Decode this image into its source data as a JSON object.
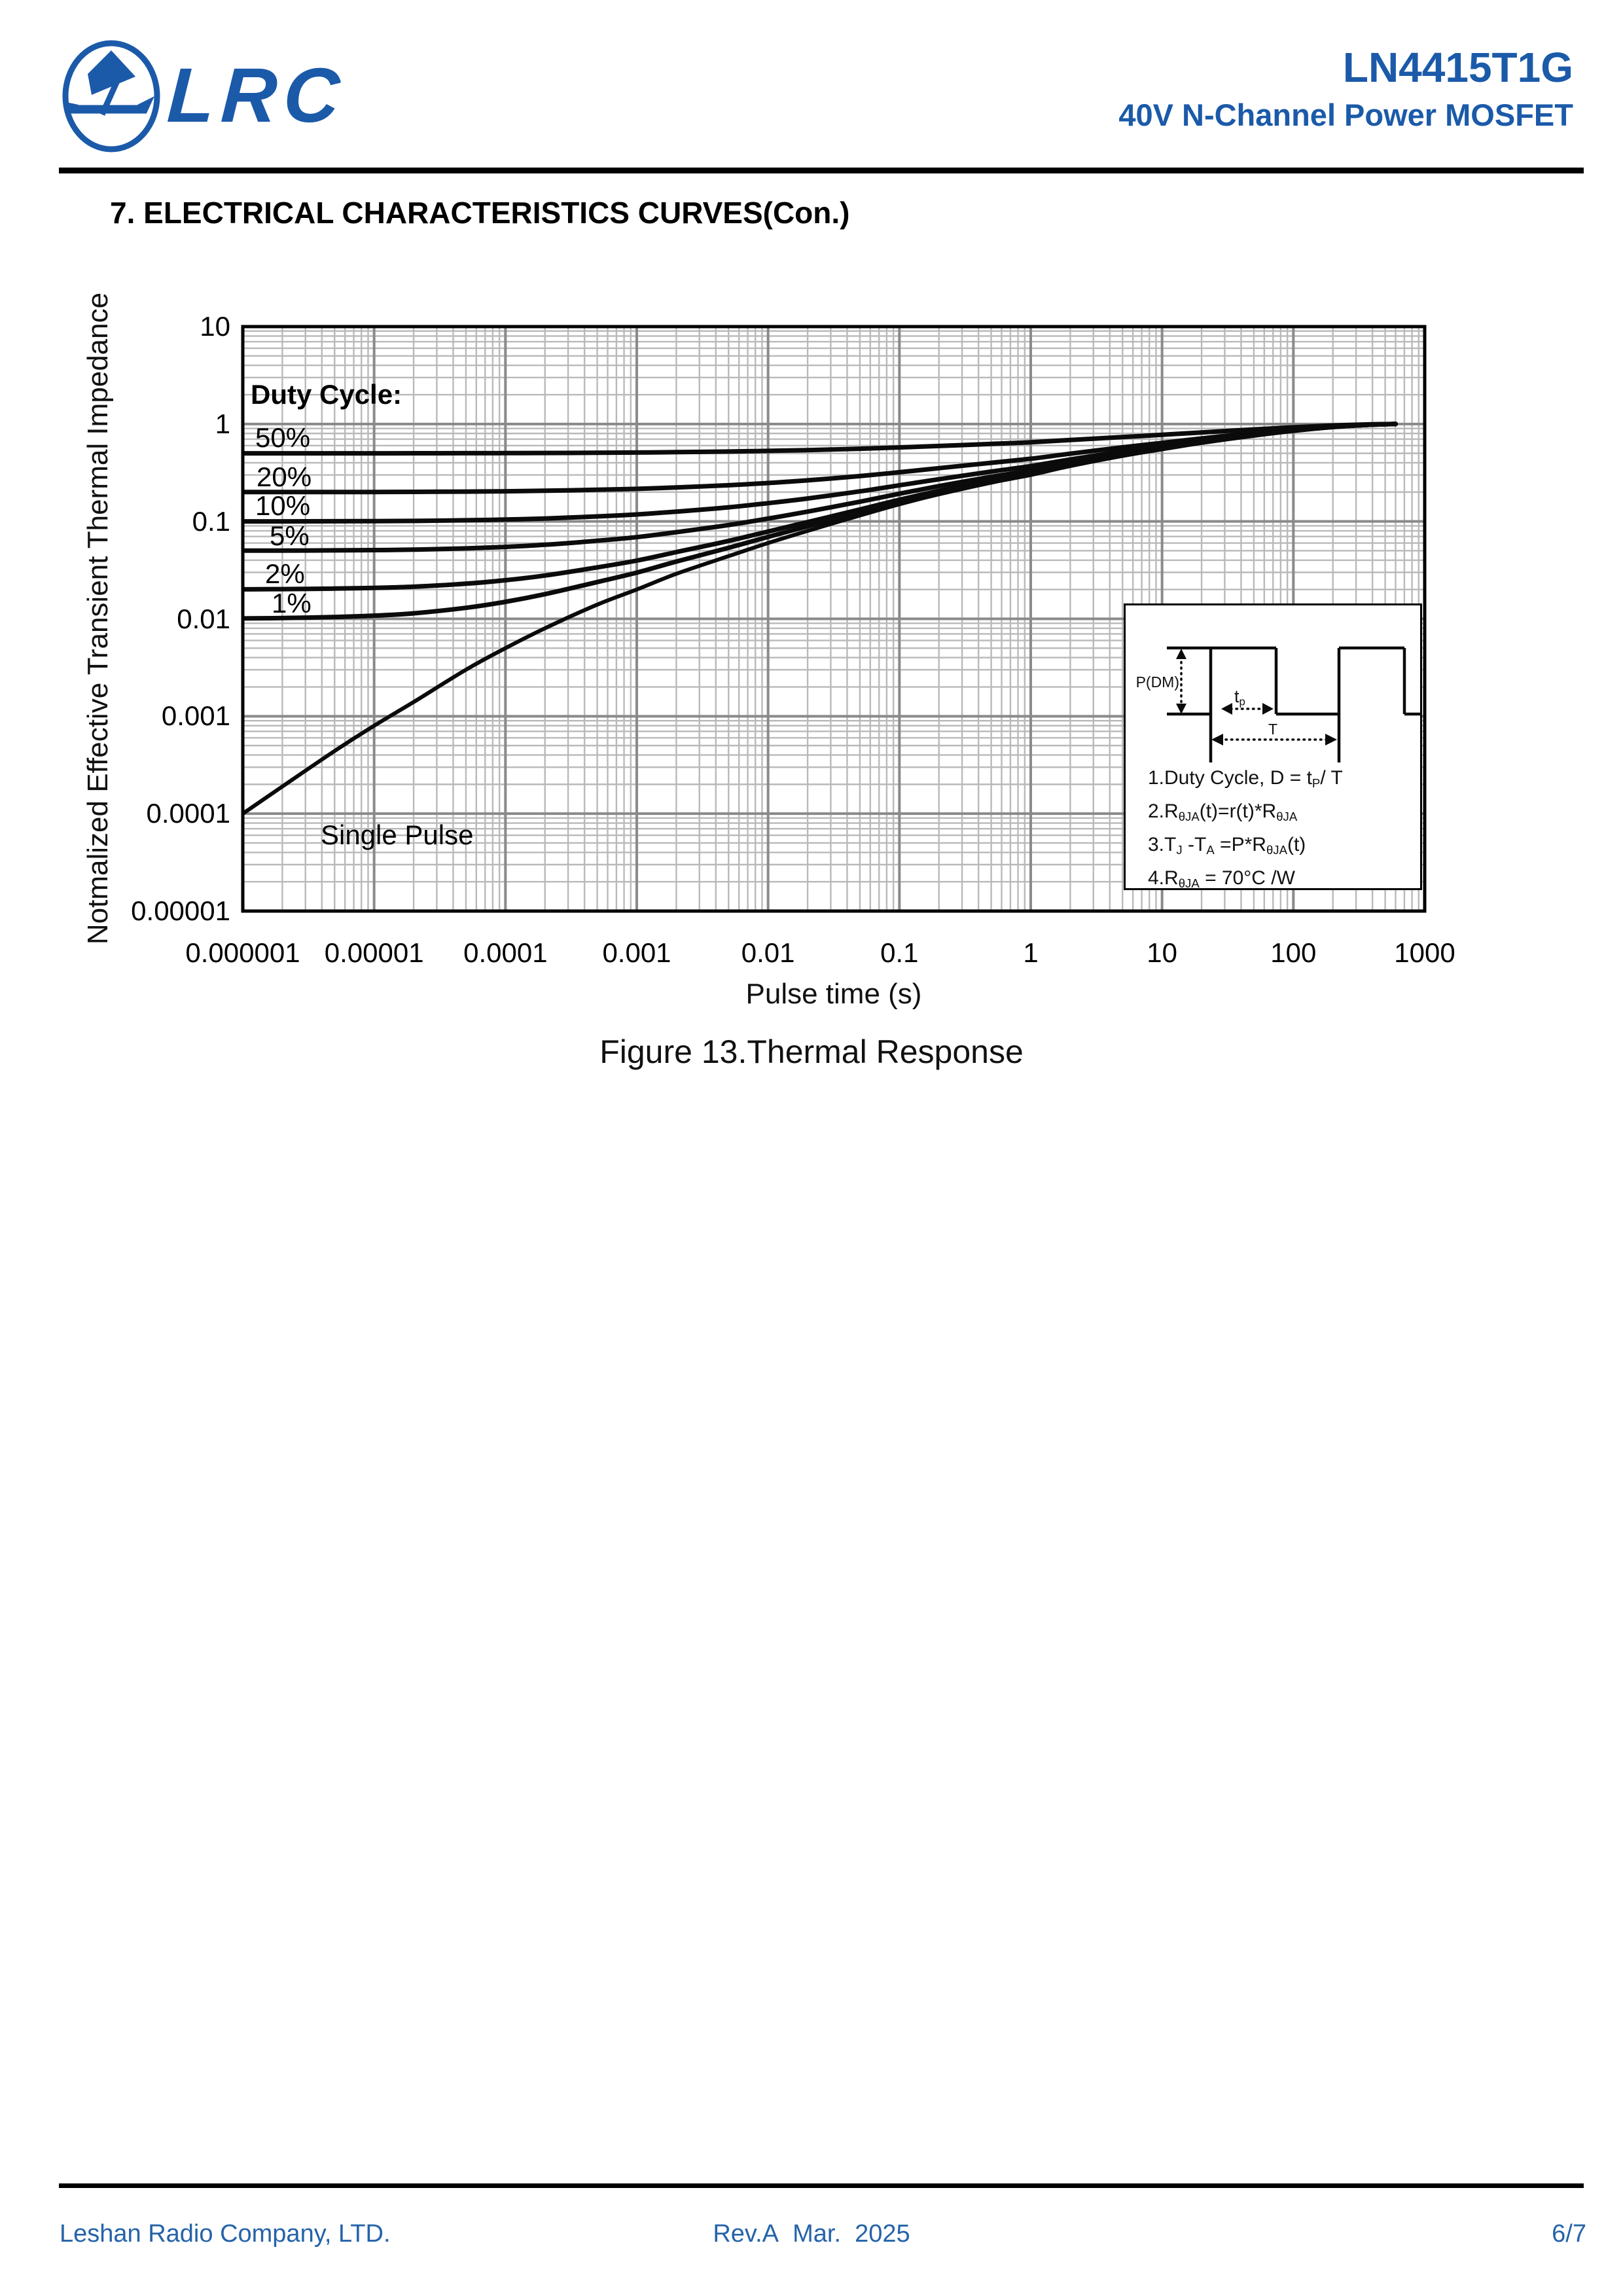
{
  "header": {
    "logo_text": "LRC",
    "part_number": "LN4415T1G",
    "subtitle": "40V N-Channel Power MOSFET"
  },
  "section": {
    "heading": "7. ELECTRICAL CHARACTERISTICS CURVES(Con.)"
  },
  "chart_data": {
    "type": "line",
    "title": "Figure 13.Thermal Response",
    "xlabel": "Pulse time (s)",
    "ylabel": "Notmalized Effective Transient Thermal Impedance",
    "x_scale": "log",
    "y_scale": "log",
    "xlim": [
      1e-06,
      1000
    ],
    "ylim": [
      1e-05,
      10
    ],
    "grid": "log minor + major decades",
    "x_tick_labels": [
      "0.000001",
      "0.00001",
      "0.0001",
      "0.001",
      "0.01",
      "0.1",
      "1",
      "10",
      "100",
      "1000"
    ],
    "y_tick_labels": [
      "10",
      "1",
      "0.1",
      "0.01",
      "0.001",
      "0.0001",
      "0.00001"
    ],
    "legend_heading": "Duty Cycle:",
    "t": [
      1e-06,
      2e-06,
      5e-06,
      1e-05,
      2e-05,
      5e-05,
      0.0001,
      0.0002,
      0.0005,
      0.001,
      0.002,
      0.005,
      0.01,
      0.02,
      0.05,
      0.1,
      0.2,
      0.5,
      1,
      2,
      5,
      10,
      20,
      50,
      100,
      200,
      400,
      600
    ],
    "single_pulse_r": [
      0.0001,
      0.00019,
      0.00044,
      0.0008,
      0.0014,
      0.003,
      0.005,
      0.008,
      0.014,
      0.02,
      0.029,
      0.044,
      0.06,
      0.08,
      0.115,
      0.15,
      0.19,
      0.25,
      0.3,
      0.37,
      0.47,
      0.55,
      0.64,
      0.76,
      0.85,
      0.93,
      0.985,
      1.0
    ],
    "series": [
      {
        "name": "50%",
        "duty": 0.5
      },
      {
        "name": "20%",
        "duty": 0.2
      },
      {
        "name": "10%",
        "duty": 0.1
      },
      {
        "name": "5%",
        "duty": 0.05
      },
      {
        "name": "2%",
        "duty": 0.02
      },
      {
        "name": "1%",
        "duty": 0.01
      },
      {
        "name": "Single Pulse",
        "duty": 0
      }
    ],
    "duty_curve_rule": "r_D(t) = D + (1 - D) * r_single_pulse(t); all curves converge to r = 1 at t ~ 600 s",
    "annotations": [
      "Duty Cycle:",
      "Single Pulse"
    ]
  },
  "inset": {
    "waveform_labels": {
      "pdm": "P(DM)",
      "tp": [
        [
          "t",
          0
        ],
        [
          "p",
          1
        ]
      ],
      "period": "T"
    },
    "equations": [
      [
        [
          "1.Duty Cycle, D = t",
          0
        ],
        [
          "P",
          1
        ],
        [
          "/ T",
          0
        ]
      ],
      [
        [
          "2.R",
          0
        ],
        [
          "θJA",
          1
        ],
        [
          "(t)=r(t)*R",
          0
        ],
        [
          "θJA",
          1
        ]
      ],
      [
        [
          "3.T",
          0
        ],
        [
          "J",
          1
        ],
        [
          " -T",
          0
        ],
        [
          "A",
          1
        ],
        [
          " =P*R",
          0
        ],
        [
          "θJA",
          1
        ],
        [
          "(t)",
          0
        ]
      ],
      [
        [
          "4.R",
          0
        ],
        [
          "θJA",
          1
        ],
        [
          " = 70°C /W",
          0
        ]
      ]
    ]
  },
  "footer": {
    "company": "Leshan Radio Company, LTD.",
    "revision": "Rev.A  Mar.  2025",
    "page": "6/7"
  },
  "colors": {
    "brand_blue": "#1b5aa9",
    "footer_blue": "#2563a8",
    "grid_minor": "#b9b9b9",
    "grid_major": "#8a8a8a",
    "curve_black": "#0b0b0b"
  }
}
